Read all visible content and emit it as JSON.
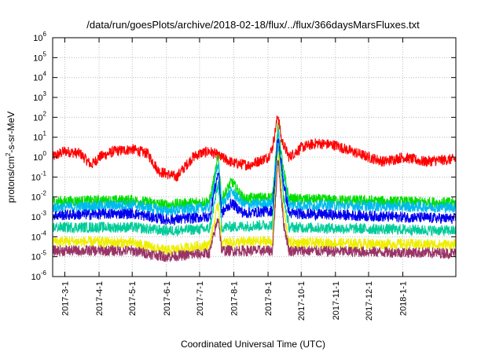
{
  "chart_data": {
    "type": "line",
    "title": "/data/run/goesPlots/archive/2018-02-18/flux/../flux/366daysMarsFluxes.txt",
    "xlabel": "Coordinated Universal Time (UTC)",
    "ylabel_parts": [
      "protons/cm",
      "2",
      "-s-sr-MeV"
    ],
    "x_range": [
      "2017-02-18",
      "2018-02-18"
    ],
    "x_ticks": [
      "2017-3-1",
      "2017-4-1",
      "2017-5-1",
      "2017-6-1",
      "2017-7-1",
      "2017-8-1",
      "2017-9-1",
      "2017-10-1",
      "2017-11-1",
      "2017-12-1",
      "2018-1-1"
    ],
    "y_scale": "log",
    "y_range": [
      1e-06,
      1000000.0
    ],
    "y_ticks": [
      {
        "base": "10",
        "exp": "-6"
      },
      {
        "base": "10",
        "exp": "-5"
      },
      {
        "base": "10",
        "exp": "-4"
      },
      {
        "base": "10",
        "exp": "-3"
      },
      {
        "base": "10",
        "exp": "-2"
      },
      {
        "base": "10",
        "exp": "-1"
      },
      {
        "base": "10",
        "exp": "0"
      },
      {
        "base": "10",
        "exp": "1"
      },
      {
        "base": "10",
        "exp": "2"
      },
      {
        "base": "10",
        "exp": "3"
      },
      {
        "base": "10",
        "exp": "4"
      },
      {
        "base": "10",
        "exp": "5"
      },
      {
        "base": "10",
        "exp": "6"
      }
    ],
    "grid": true,
    "series": [
      {
        "color": "#ff0000",
        "points": [
          [
            "2017-02-18",
            1.0
          ],
          [
            "2017-03-01",
            2.0
          ],
          [
            "2017-03-15",
            1.5
          ],
          [
            "2017-03-25",
            0.4
          ],
          [
            "2017-04-01",
            1.0
          ],
          [
            "2017-04-15",
            2.0
          ],
          [
            "2017-05-01",
            2.5
          ],
          [
            "2017-05-15",
            1.5
          ],
          [
            "2017-05-25",
            0.2
          ],
          [
            "2017-06-10",
            0.1
          ],
          [
            "2017-06-25",
            1.0
          ],
          [
            "2017-07-01",
            1.5
          ],
          [
            "2017-07-10",
            2.0
          ],
          [
            "2017-07-20",
            1.0
          ],
          [
            "2017-08-01",
            0.5
          ],
          [
            "2017-08-15",
            0.4
          ],
          [
            "2017-09-01",
            1.0
          ],
          [
            "2017-09-05",
            3.0
          ],
          [
            "2017-09-10",
            150
          ],
          [
            "2017-09-13",
            8
          ],
          [
            "2017-09-20",
            1.0
          ],
          [
            "2017-10-01",
            3.0
          ],
          [
            "2017-10-15",
            5.0
          ],
          [
            "2017-11-01",
            4.0
          ],
          [
            "2017-11-15",
            2.0
          ],
          [
            "2017-12-01",
            1.0
          ],
          [
            "2017-12-15",
            0.6
          ],
          [
            "2018-01-01",
            1.0
          ],
          [
            "2018-01-20",
            0.6
          ],
          [
            "2018-02-18",
            0.8
          ]
        ]
      },
      {
        "color": "#00dd00",
        "points": [
          [
            "2017-02-18",
            0.006
          ],
          [
            "2017-05-01",
            0.007
          ],
          [
            "2017-06-01",
            0.004
          ],
          [
            "2017-07-10",
            0.006
          ],
          [
            "2017-07-18",
            1.0
          ],
          [
            "2017-07-21",
            0.008
          ],
          [
            "2017-07-30",
            0.06
          ],
          [
            "2017-08-10",
            0.008
          ],
          [
            "2017-09-05",
            0.01
          ],
          [
            "2017-09-10",
            30
          ],
          [
            "2017-09-15",
            0.2
          ],
          [
            "2017-09-20",
            0.008
          ],
          [
            "2017-11-01",
            0.007
          ],
          [
            "2018-02-18",
            0.005
          ]
        ]
      },
      {
        "color": "#00bbee",
        "points": [
          [
            "2017-02-18",
            0.003
          ],
          [
            "2017-05-01",
            0.004
          ],
          [
            "2017-06-01",
            0.002
          ],
          [
            "2017-07-10",
            0.003
          ],
          [
            "2017-07-18",
            0.5
          ],
          [
            "2017-07-21",
            0.004
          ],
          [
            "2017-07-30",
            0.02
          ],
          [
            "2017-08-10",
            0.004
          ],
          [
            "2017-09-05",
            0.005
          ],
          [
            "2017-09-10",
            20
          ],
          [
            "2017-09-15",
            0.1
          ],
          [
            "2017-09-20",
            0.004
          ],
          [
            "2018-02-18",
            0.003
          ]
        ]
      },
      {
        "color": "#0000ee",
        "points": [
          [
            "2017-02-18",
            0.0012
          ],
          [
            "2017-05-01",
            0.0015
          ],
          [
            "2017-06-01",
            0.0007
          ],
          [
            "2017-07-10",
            0.001
          ],
          [
            "2017-07-18",
            0.2
          ],
          [
            "2017-07-21",
            0.0015
          ],
          [
            "2017-07-30",
            0.005
          ],
          [
            "2017-08-10",
            0.0015
          ],
          [
            "2017-09-05",
            0.002
          ],
          [
            "2017-09-10",
            10
          ],
          [
            "2017-09-15",
            0.05
          ],
          [
            "2017-09-20",
            0.0015
          ],
          [
            "2018-02-18",
            0.0008
          ]
        ]
      },
      {
        "color": "#00cc99",
        "points": [
          [
            "2017-02-18",
            0.0003
          ],
          [
            "2017-05-01",
            0.0003
          ],
          [
            "2017-06-01",
            0.0002
          ],
          [
            "2017-07-10",
            0.00025
          ],
          [
            "2017-07-18",
            0.05
          ],
          [
            "2017-07-21",
            0.0003
          ],
          [
            "2017-09-05",
            0.0004
          ],
          [
            "2017-09-10",
            5
          ],
          [
            "2017-09-15",
            0.01
          ],
          [
            "2017-09-20",
            0.0003
          ],
          [
            "2018-02-18",
            0.0002
          ]
        ]
      },
      {
        "color": "#eeee00",
        "points": [
          [
            "2017-02-18",
            6e-05
          ],
          [
            "2017-05-01",
            5e-05
          ],
          [
            "2017-06-01",
            2e-05
          ],
          [
            "2017-07-10",
            4e-05
          ],
          [
            "2017-07-18",
            0.005
          ],
          [
            "2017-07-21",
            5e-05
          ],
          [
            "2017-09-05",
            6e-05
          ],
          [
            "2017-09-10",
            2
          ],
          [
            "2017-09-15",
            0.002
          ],
          [
            "2017-09-20",
            5e-05
          ],
          [
            "2018-02-18",
            4e-05
          ]
        ]
      },
      {
        "color": "#993366",
        "points": [
          [
            "2017-02-18",
            2e-05
          ],
          [
            "2017-05-01",
            2e-05
          ],
          [
            "2017-06-01",
            1e-05
          ],
          [
            "2017-07-10",
            1.5e-05
          ],
          [
            "2017-07-18",
            0.001
          ],
          [
            "2017-07-21",
            2e-05
          ],
          [
            "2017-09-05",
            2e-05
          ],
          [
            "2017-09-10",
            1
          ],
          [
            "2017-09-15",
            0.0005
          ],
          [
            "2017-09-20",
            2e-05
          ],
          [
            "2018-02-18",
            1.5e-05
          ]
        ]
      }
    ]
  }
}
